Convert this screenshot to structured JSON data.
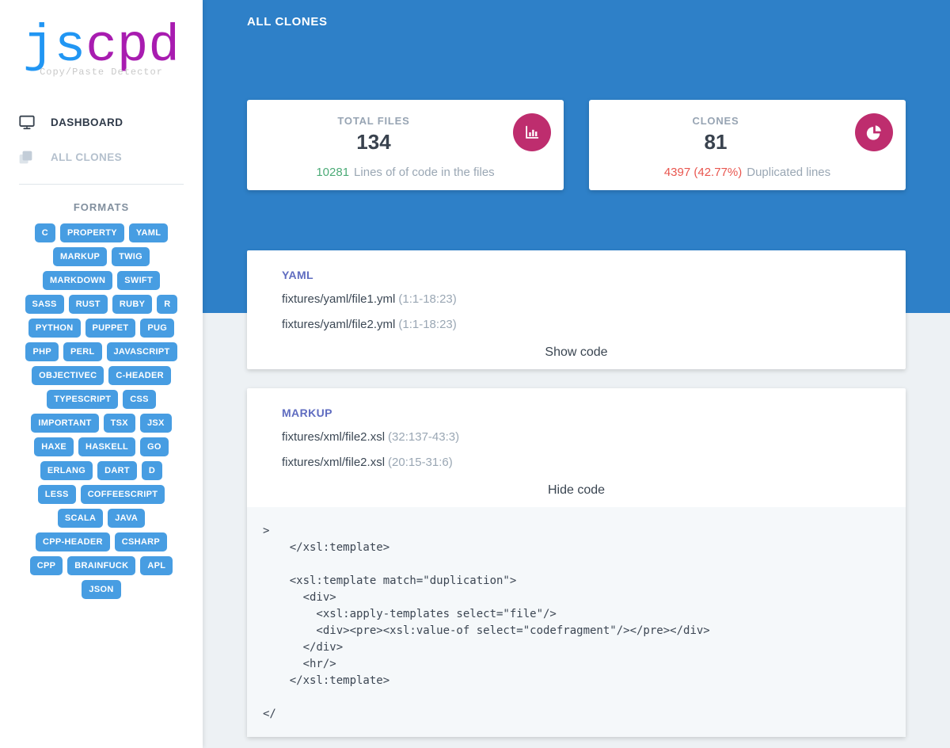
{
  "sidebar": {
    "logo": {
      "text_primary": "js",
      "text_secondary": "cpd",
      "subtitle": "Copy/Paste Detector",
      "color_primary": "#2196f3",
      "color_secondary": "#a81cb0"
    },
    "nav": [
      {
        "label": "DASHBOARD",
        "icon": "monitor-icon",
        "active": true
      },
      {
        "label": "ALL CLONES",
        "icon": "copy-icon",
        "active": false
      }
    ],
    "formats_title": "FORMATS",
    "formats": [
      "C",
      "PROPERTY",
      "YAML",
      "MARKUP",
      "TWIG",
      "MARKDOWN",
      "SWIFT",
      "SASS",
      "RUST",
      "RUBY",
      "R",
      "PYTHON",
      "PUPPET",
      "PUG",
      "PHP",
      "PERL",
      "JAVASCRIPT",
      "OBJECTIVEC",
      "C-HEADER",
      "TYPESCRIPT",
      "CSS",
      "IMPORTANT",
      "TSX",
      "JSX",
      "HAXE",
      "HASKELL",
      "GO",
      "ERLANG",
      "DART",
      "D",
      "LESS",
      "COFFEESCRIPT",
      "SCALA",
      "JAVA",
      "CPP-HEADER",
      "CSHARP",
      "CPP",
      "BRAINFUCK",
      "APL",
      "JSON"
    ],
    "badge_color": "#479de2"
  },
  "header": {
    "title": "ALL CLONES",
    "band_color": "#2e80c8"
  },
  "stats": [
    {
      "label": "TOTAL FILES",
      "value": "134",
      "detail_value": "10281",
      "detail_value_color": "#4cab77",
      "detail_text": "Lines of of code in the files",
      "icon": "bar-chart-icon",
      "icon_bg": "#be2d6e"
    },
    {
      "label": "CLONES",
      "value": "81",
      "detail_value": "4397 (42.77%)",
      "detail_value_color": "#e9564f",
      "detail_text": "Duplicated lines",
      "icon": "pie-chart-icon",
      "icon_bg": "#be2d6e"
    }
  ],
  "clones": [
    {
      "format": "YAML",
      "files": [
        {
          "path": "fixtures/yaml/file1.yml",
          "range": "(1:1-18:23)"
        },
        {
          "path": "fixtures/yaml/file2.yml",
          "range": "(1:1-18:23)"
        }
      ],
      "toggle_label": "Show code",
      "code_visible": false
    },
    {
      "format": "MARKUP",
      "files": [
        {
          "path": "fixtures/xml/file2.xsl",
          "range": "(32:137-43:3)"
        },
        {
          "path": "fixtures/xml/file2.xsl",
          "range": "(20:15-31:6)"
        }
      ],
      "toggle_label": "Hide code",
      "code_visible": true,
      "code": ">\n    </xsl:template>\n\n    <xsl:template match=\"duplication\">\n      <div>\n        <xsl:apply-templates select=\"file\"/>\n        <div><pre><xsl:value-of select=\"codefragment\"/></pre></div>\n      </div>\n      <hr/>\n    </xsl:template>\n\n</"
    }
  ]
}
